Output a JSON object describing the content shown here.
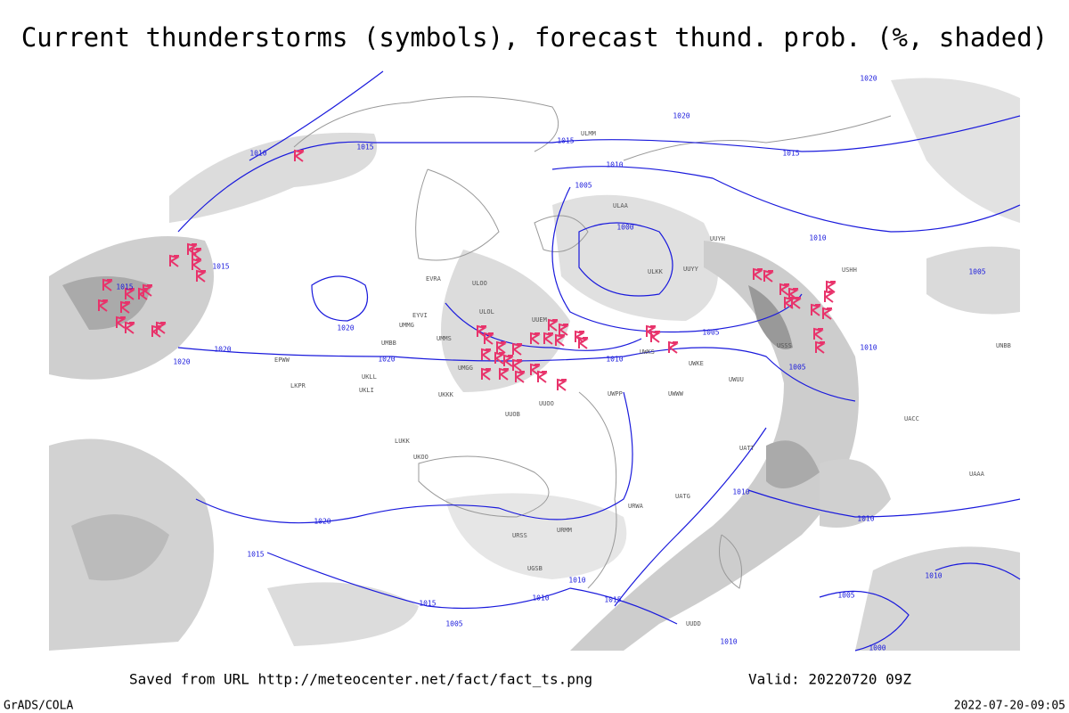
{
  "header": {
    "title": "Current thunderstorms (symbols), forecast thund. prob. (%, shaded)"
  },
  "map": {
    "isobar_labels": [
      1010,
      1015,
      1015,
      1015,
      1020,
      1020,
      1020,
      1020,
      1015,
      1010,
      1005,
      1000,
      1020,
      1020,
      1015,
      1010,
      1005,
      1005,
      1010,
      1005,
      1010,
      1010,
      1010,
      1020,
      1015,
      1010,
      1015,
      1015,
      1010,
      1005,
      1010,
      1010,
      1005,
      1000
    ],
    "station_labels": [
      "ULOO",
      "ULOL",
      "UUEM",
      "UMMS",
      "UMGG",
      "UKKK",
      "UUOB",
      "UUOO",
      "UWPP",
      "UWKS",
      "UWKE",
      "UWWW",
      "UWUU",
      "ULKK",
      "UUYY",
      "UUYH",
      "ULAA",
      "ULMM",
      "EVRA",
      "EYVI",
      "UMMG",
      "UMBB",
      "UKLL",
      "UKLI",
      "EPWW",
      "LKPR",
      "LUKK",
      "UKOO",
      "USSS",
      "USHH",
      "UNBB",
      "UAAA",
      "UACC",
      "UATT",
      "UATG",
      "URWA",
      "URMM",
      "URSS",
      "UGSB",
      "UUDD"
    ]
  },
  "footer": {
    "source": "Saved from URL http://meteocenter.net/fact/fact_ts.png",
    "valid": "Valid: 20220720 09Z",
    "credit": "GrADS/COLA",
    "timestamp": "2022-07-20-09:05"
  }
}
